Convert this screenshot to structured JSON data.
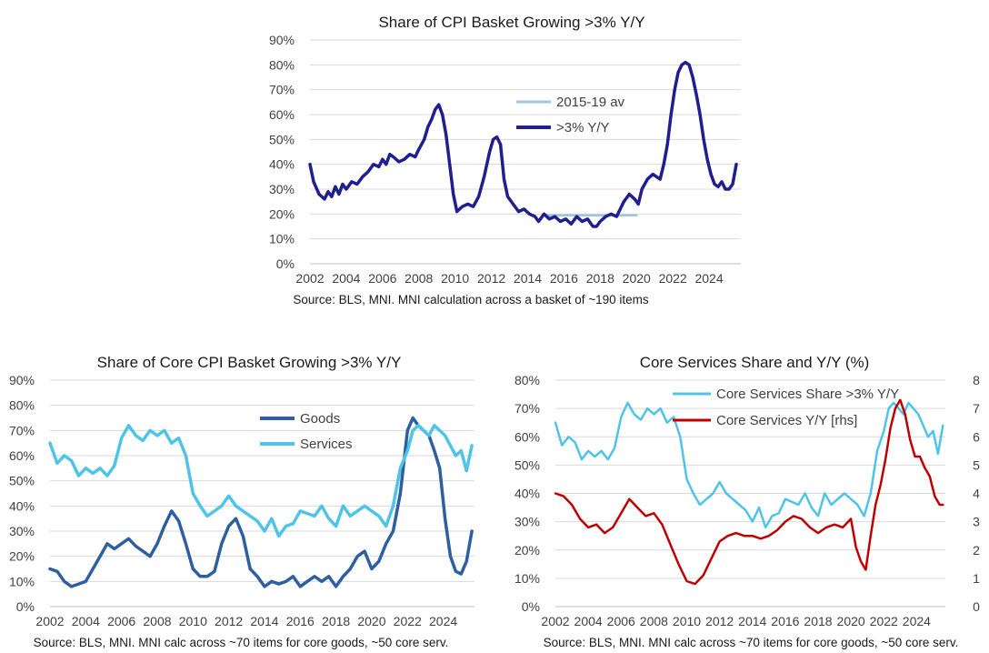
{
  "chart_data": [
    {
      "type": "line",
      "title": "Share of CPI Basket Growing >3% Y/Y",
      "source": "Source: BLS, MNI.  MNI calculation across a basket of ~190 items",
      "ylim": [
        0,
        90
      ],
      "yticks": [
        "0%",
        "10%",
        "20%",
        "30%",
        "40%",
        "50%",
        "60%",
        "70%",
        "80%",
        "90%"
      ],
      "xlim": [
        2002,
        2025.75
      ],
      "xticks": [
        "2002",
        "2004",
        "2006",
        "2008",
        "2010",
        "2012",
        "2014",
        "2016",
        "2018",
        "2020",
        "2022",
        "2024"
      ],
      "grid": true,
      "legend_position": "inside-center",
      "series": [
        {
          "name": "2015-19 av",
          "color": "#9dc3e6",
          "x": [
            2015.0,
            2020.0
          ],
          "values": [
            19.5,
            19.5
          ]
        },
        {
          "name": ">3% Y/Y",
          "color": "#1f1f8f",
          "x": [
            2002.0,
            2002.2,
            2002.5,
            2002.8,
            2003.0,
            2003.2,
            2003.4,
            2003.6,
            2003.8,
            2004.0,
            2004.3,
            2004.6,
            2004.9,
            2005.2,
            2005.5,
            2005.8,
            2006.0,
            2006.2,
            2006.4,
            2006.6,
            2006.9,
            2007.2,
            2007.5,
            2007.8,
            2008.0,
            2008.3,
            2008.5,
            2008.7,
            2008.9,
            2009.1,
            2009.3,
            2009.5,
            2009.7,
            2009.9,
            2010.1,
            2010.4,
            2010.7,
            2011.0,
            2011.3,
            2011.6,
            2011.9,
            2012.1,
            2012.3,
            2012.5,
            2012.7,
            2012.9,
            2013.2,
            2013.5,
            2013.8,
            2014.1,
            2014.4,
            2014.6,
            2014.9,
            2015.2,
            2015.5,
            2015.8,
            2016.1,
            2016.4,
            2016.7,
            2017.0,
            2017.3,
            2017.6,
            2017.8,
            2018.0,
            2018.3,
            2018.6,
            2018.9,
            2019.1,
            2019.3,
            2019.6,
            2019.9,
            2020.1,
            2020.3,
            2020.6,
            2020.9,
            2021.1,
            2021.3,
            2021.5,
            2021.7,
            2021.9,
            2022.1,
            2022.3,
            2022.5,
            2022.7,
            2022.9,
            2023.1,
            2023.3,
            2023.5,
            2023.7,
            2023.9,
            2024.1,
            2024.3,
            2024.5,
            2024.7,
            2024.9,
            2025.1,
            2025.3,
            2025.5
          ],
          "values": [
            40,
            33,
            28,
            26,
            29,
            27,
            31,
            28,
            32,
            30,
            33,
            32,
            35,
            37,
            40,
            39,
            42,
            40,
            44,
            43,
            41,
            42,
            44,
            43,
            46,
            50,
            55,
            58,
            62,
            64,
            60,
            52,
            40,
            28,
            21,
            23,
            24,
            23,
            27,
            35,
            45,
            50,
            51,
            48,
            34,
            27,
            24,
            21,
            22,
            20,
            19,
            17,
            20,
            18,
            19,
            17,
            18,
            16,
            19,
            17,
            18,
            15,
            15,
            17,
            19,
            20,
            19,
            22,
            25,
            28,
            26,
            24,
            30,
            34,
            36,
            35,
            34,
            40,
            48,
            60,
            70,
            77,
            80,
            81,
            80,
            75,
            68,
            60,
            50,
            42,
            36,
            32,
            31,
            33,
            30,
            30,
            32,
            40
          ]
        }
      ]
    },
    {
      "type": "line",
      "title": "Share of Core CPI Basket Growing >3% Y/Y",
      "source": "Source: BLS, MNI.  MNI calc across ~70 items for core goods, ~50 core serv.",
      "ylim": [
        0,
        90
      ],
      "yticks": [
        "0%",
        "10%",
        "20%",
        "30%",
        "40%",
        "50%",
        "60%",
        "70%",
        "80%",
        "90%"
      ],
      "xlim": [
        2002,
        2025.75
      ],
      "xticks": [
        "2002",
        "2004",
        "2006",
        "2008",
        "2010",
        "2012",
        "2014",
        "2016",
        "2018",
        "2020",
        "2022",
        "2024"
      ],
      "grid": true,
      "legend_position": "top-right",
      "series": [
        {
          "name": "Goods",
          "color": "#2e5fa1",
          "x": [
            2002.0,
            2002.4,
            2002.8,
            2003.2,
            2003.6,
            2004.0,
            2004.4,
            2004.8,
            2005.2,
            2005.6,
            2006.0,
            2006.4,
            2006.8,
            2007.2,
            2007.6,
            2008.0,
            2008.4,
            2008.8,
            2009.2,
            2009.6,
            2010.0,
            2010.4,
            2010.8,
            2011.2,
            2011.6,
            2012.0,
            2012.4,
            2012.8,
            2013.2,
            2013.6,
            2014.0,
            2014.4,
            2014.8,
            2015.2,
            2015.6,
            2016.0,
            2016.4,
            2016.8,
            2017.2,
            2017.6,
            2018.0,
            2018.4,
            2018.8,
            2019.2,
            2019.6,
            2020.0,
            2020.4,
            2020.8,
            2021.2,
            2021.6,
            2022.0,
            2022.3,
            2022.6,
            2022.9,
            2023.2,
            2023.5,
            2023.8,
            2024.1,
            2024.4,
            2024.7,
            2025.0,
            2025.3,
            2025.6
          ],
          "values": [
            15,
            14,
            10,
            8,
            9,
            10,
            15,
            20,
            25,
            23,
            25,
            27,
            24,
            22,
            20,
            25,
            32,
            38,
            34,
            25,
            15,
            12,
            12,
            14,
            25,
            32,
            35,
            28,
            15,
            12,
            8,
            10,
            9,
            10,
            12,
            8,
            10,
            12,
            10,
            12,
            8,
            12,
            15,
            20,
            22,
            15,
            18,
            25,
            30,
            45,
            70,
            75,
            72,
            70,
            68,
            62,
            55,
            35,
            20,
            14,
            13,
            18,
            30
          ]
        },
        {
          "name": "Services",
          "color": "#4fc3e8",
          "x": [
            2002.0,
            2002.4,
            2002.8,
            2003.2,
            2003.6,
            2004.0,
            2004.4,
            2004.8,
            2005.2,
            2005.6,
            2006.0,
            2006.4,
            2006.8,
            2007.2,
            2007.6,
            2008.0,
            2008.4,
            2008.8,
            2009.2,
            2009.6,
            2010.0,
            2010.4,
            2010.8,
            2011.2,
            2011.6,
            2012.0,
            2012.4,
            2012.8,
            2013.2,
            2013.6,
            2014.0,
            2014.4,
            2014.8,
            2015.2,
            2015.6,
            2016.0,
            2016.4,
            2016.8,
            2017.2,
            2017.6,
            2018.0,
            2018.4,
            2018.8,
            2019.2,
            2019.6,
            2020.0,
            2020.4,
            2020.8,
            2021.2,
            2021.6,
            2022.0,
            2022.3,
            2022.6,
            2022.9,
            2023.2,
            2023.5,
            2023.8,
            2024.1,
            2024.4,
            2024.7,
            2025.0,
            2025.3,
            2025.6
          ],
          "values": [
            65,
            57,
            60,
            58,
            52,
            55,
            53,
            55,
            52,
            56,
            67,
            72,
            68,
            66,
            70,
            68,
            70,
            65,
            67,
            60,
            45,
            40,
            36,
            38,
            40,
            44,
            40,
            38,
            36,
            34,
            30,
            35,
            28,
            32,
            33,
            38,
            37,
            36,
            40,
            35,
            32,
            40,
            36,
            38,
            40,
            38,
            36,
            32,
            40,
            55,
            62,
            70,
            72,
            70,
            68,
            72,
            70,
            68,
            64,
            60,
            62,
            54,
            64
          ]
        }
      ]
    },
    {
      "type": "line",
      "title": "Core Services Share and Y/Y (%)",
      "source": "Source: BLS, MNI.  MNI calc across ~70 items for core goods, ~50 core serv.",
      "ylim": [
        0,
        80
      ],
      "yticks": [
        "0%",
        "10%",
        "20%",
        "30%",
        "40%",
        "50%",
        "60%",
        "70%",
        "80%"
      ],
      "y2lim": [
        0,
        8
      ],
      "y2ticks": [
        "0",
        "1",
        "2",
        "3",
        "4",
        "5",
        "6",
        "7",
        "8"
      ],
      "xlim": [
        2002,
        2025.75
      ],
      "xticks": [
        "2002",
        "2004",
        "2006",
        "2008",
        "2010",
        "2012",
        "2014",
        "2016",
        "2018",
        "2020",
        "2022",
        "2024"
      ],
      "grid": true,
      "legend_position": "top-right",
      "series": [
        {
          "name": "Core Services Share >3% Y/Y",
          "color": "#4fc3e8",
          "axis": "left",
          "x": [
            2002.0,
            2002.4,
            2002.8,
            2003.2,
            2003.6,
            2004.0,
            2004.4,
            2004.8,
            2005.2,
            2005.6,
            2006.0,
            2006.4,
            2006.8,
            2007.2,
            2007.6,
            2008.0,
            2008.4,
            2008.8,
            2009.2,
            2009.6,
            2010.0,
            2010.4,
            2010.8,
            2011.2,
            2011.6,
            2012.0,
            2012.4,
            2012.8,
            2013.2,
            2013.6,
            2014.0,
            2014.4,
            2014.8,
            2015.2,
            2015.6,
            2016.0,
            2016.4,
            2016.8,
            2017.2,
            2017.6,
            2018.0,
            2018.4,
            2018.8,
            2019.2,
            2019.6,
            2020.0,
            2020.4,
            2020.8,
            2021.2,
            2021.6,
            2022.0,
            2022.3,
            2022.6,
            2022.9,
            2023.2,
            2023.5,
            2023.8,
            2024.1,
            2024.4,
            2024.7,
            2025.0,
            2025.3,
            2025.6
          ],
          "values": [
            65,
            57,
            60,
            58,
            52,
            55,
            53,
            55,
            52,
            56,
            67,
            72,
            68,
            66,
            70,
            68,
            70,
            65,
            67,
            60,
            45,
            40,
            36,
            38,
            40,
            44,
            40,
            38,
            36,
            34,
            30,
            35,
            28,
            32,
            33,
            38,
            37,
            36,
            40,
            35,
            32,
            40,
            36,
            38,
            40,
            38,
            36,
            32,
            40,
            55,
            62,
            70,
            72,
            70,
            68,
            72,
            70,
            68,
            64,
            60,
            62,
            54,
            64
          ]
        },
        {
          "name": "Core Services Y/Y [rhs]",
          "color": "#c00000",
          "axis": "right",
          "x": [
            2002.0,
            2002.5,
            2003.0,
            2003.5,
            2004.0,
            2004.5,
            2005.0,
            2005.5,
            2006.0,
            2006.5,
            2007.0,
            2007.5,
            2008.0,
            2008.5,
            2009.0,
            2009.5,
            2010.0,
            2010.5,
            2011.0,
            2011.5,
            2012.0,
            2012.5,
            2013.0,
            2013.5,
            2014.0,
            2014.5,
            2015.0,
            2015.5,
            2016.0,
            2016.5,
            2017.0,
            2017.5,
            2018.0,
            2018.5,
            2019.0,
            2019.5,
            2020.0,
            2020.3,
            2020.6,
            2020.9,
            2021.2,
            2021.5,
            2021.8,
            2022.1,
            2022.4,
            2022.7,
            2023.0,
            2023.3,
            2023.6,
            2023.9,
            2024.2,
            2024.5,
            2024.8,
            2025.1,
            2025.4,
            2025.6
          ],
          "values": [
            4.0,
            3.9,
            3.6,
            3.1,
            2.8,
            2.9,
            2.6,
            2.8,
            3.3,
            3.8,
            3.5,
            3.2,
            3.3,
            2.9,
            2.2,
            1.5,
            0.9,
            0.8,
            1.1,
            1.7,
            2.3,
            2.5,
            2.6,
            2.5,
            2.5,
            2.4,
            2.5,
            2.7,
            3.0,
            3.2,
            3.1,
            2.8,
            2.6,
            2.8,
            2.9,
            2.8,
            3.1,
            2.1,
            1.6,
            1.3,
            2.5,
            3.6,
            4.3,
            5.2,
            6.3,
            7.0,
            7.3,
            6.8,
            5.9,
            5.3,
            5.3,
            4.9,
            4.6,
            3.9,
            3.6,
            3.6
          ]
        }
      ]
    }
  ]
}
